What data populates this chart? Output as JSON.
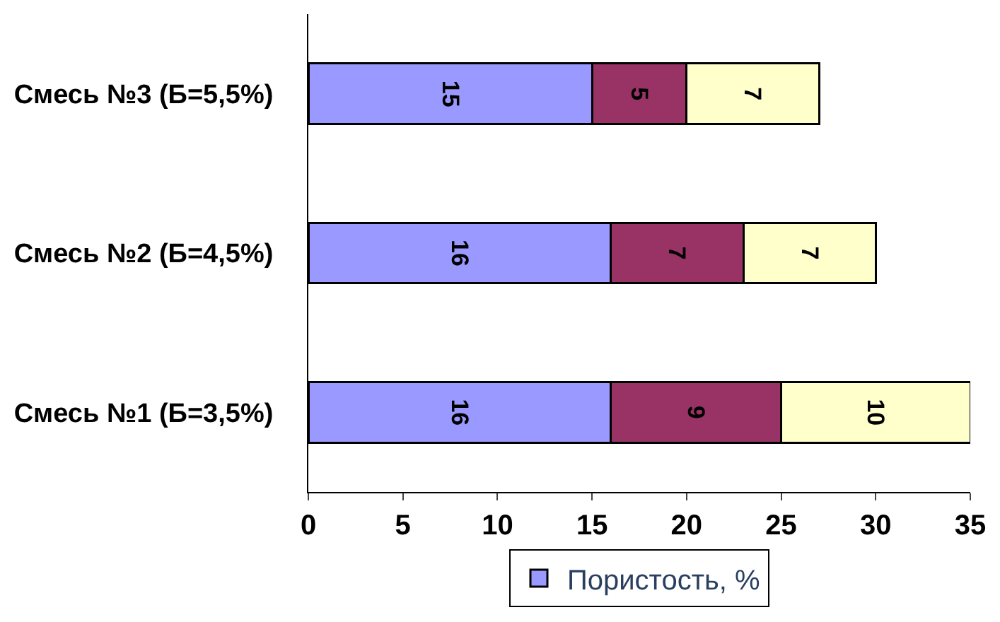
{
  "chart_data": {
    "type": "bar",
    "orientation": "horizontal",
    "stacked": true,
    "categories": [
      "Смесь №3 (Б=5,5%)",
      "Смесь №2 (Б=4,5%)",
      "Смесь №1 (Б=3,5%)"
    ],
    "series": [
      {
        "name": "Пористость, %",
        "color": "#9999ff",
        "values": [
          15,
          16,
          16
        ]
      },
      {
        "color": "#993366",
        "values": [
          5,
          7,
          9
        ]
      },
      {
        "color": "#ffffcc",
        "values": [
          7,
          7,
          10
        ]
      }
    ],
    "xlim": [
      0,
      35
    ],
    "xticks": [
      0,
      5,
      10,
      15,
      20,
      25,
      30,
      35
    ],
    "data_labels": true,
    "legend": "bottom"
  }
}
